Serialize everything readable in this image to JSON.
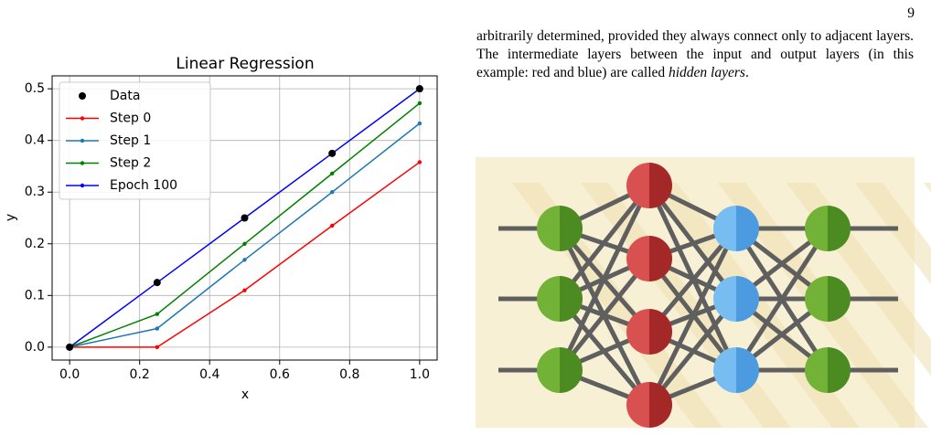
{
  "page_number": "9",
  "chart_data": {
    "type": "line",
    "title": "Linear Regression",
    "x_label": "x",
    "y_label": "y",
    "x": [
      0,
      0.25,
      0.5,
      0.75,
      1
    ],
    "series": [
      {
        "name": "Data",
        "type": "scatter",
        "color": "#000000",
        "values": [
          0,
          0.125,
          0.25,
          0.375,
          0.5
        ]
      },
      {
        "name": "Step 0",
        "color": "#ff0000",
        "values": [
          0,
          0,
          0.11,
          0.235,
          0.358
        ]
      },
      {
        "name": "Step 1",
        "color": "#1f77b4",
        "values": [
          0,
          0.036,
          0.169,
          0.3,
          0.433
        ]
      },
      {
        "name": "Step 2",
        "color": "#008000",
        "values": [
          0,
          0.064,
          0.2,
          0.336,
          0.472
        ]
      },
      {
        "name": "Epoch 100",
        "color": "#0000ff",
        "values": [
          0,
          0.125,
          0.25,
          0.375,
          0.5
        ]
      }
    ],
    "xlim": [
      -0.05,
      1.05
    ],
    "ylim": [
      -0.025,
      0.525
    ],
    "xticks": [
      {
        "value": 0,
        "label": "0.0"
      },
      {
        "value": 0.2,
        "label": "0.2"
      },
      {
        "value": 0.4,
        "label": "0.4"
      },
      {
        "value": 0.6,
        "label": "0.6"
      },
      {
        "value": 0.8,
        "label": "0.8"
      },
      {
        "value": 1,
        "label": "1.0"
      }
    ],
    "yticks": [
      {
        "value": 0,
        "label": "0.0"
      },
      {
        "value": 0.1,
        "label": "0.1"
      },
      {
        "value": 0.2,
        "label": "0.2"
      },
      {
        "value": 0.3,
        "label": "0.3"
      },
      {
        "value": 0.4,
        "label": "0.4"
      },
      {
        "value": 0.5,
        "label": "0.5"
      }
    ],
    "grid": true,
    "legend": "upper-left"
  },
  "paragraph": [
    "arbitrarily determined, provided they always connect only to adjacent layers. The intermediate layers between the input and output layers (in this example: red and blue) are called ",
    "hidden layers",
    "."
  ]
}
